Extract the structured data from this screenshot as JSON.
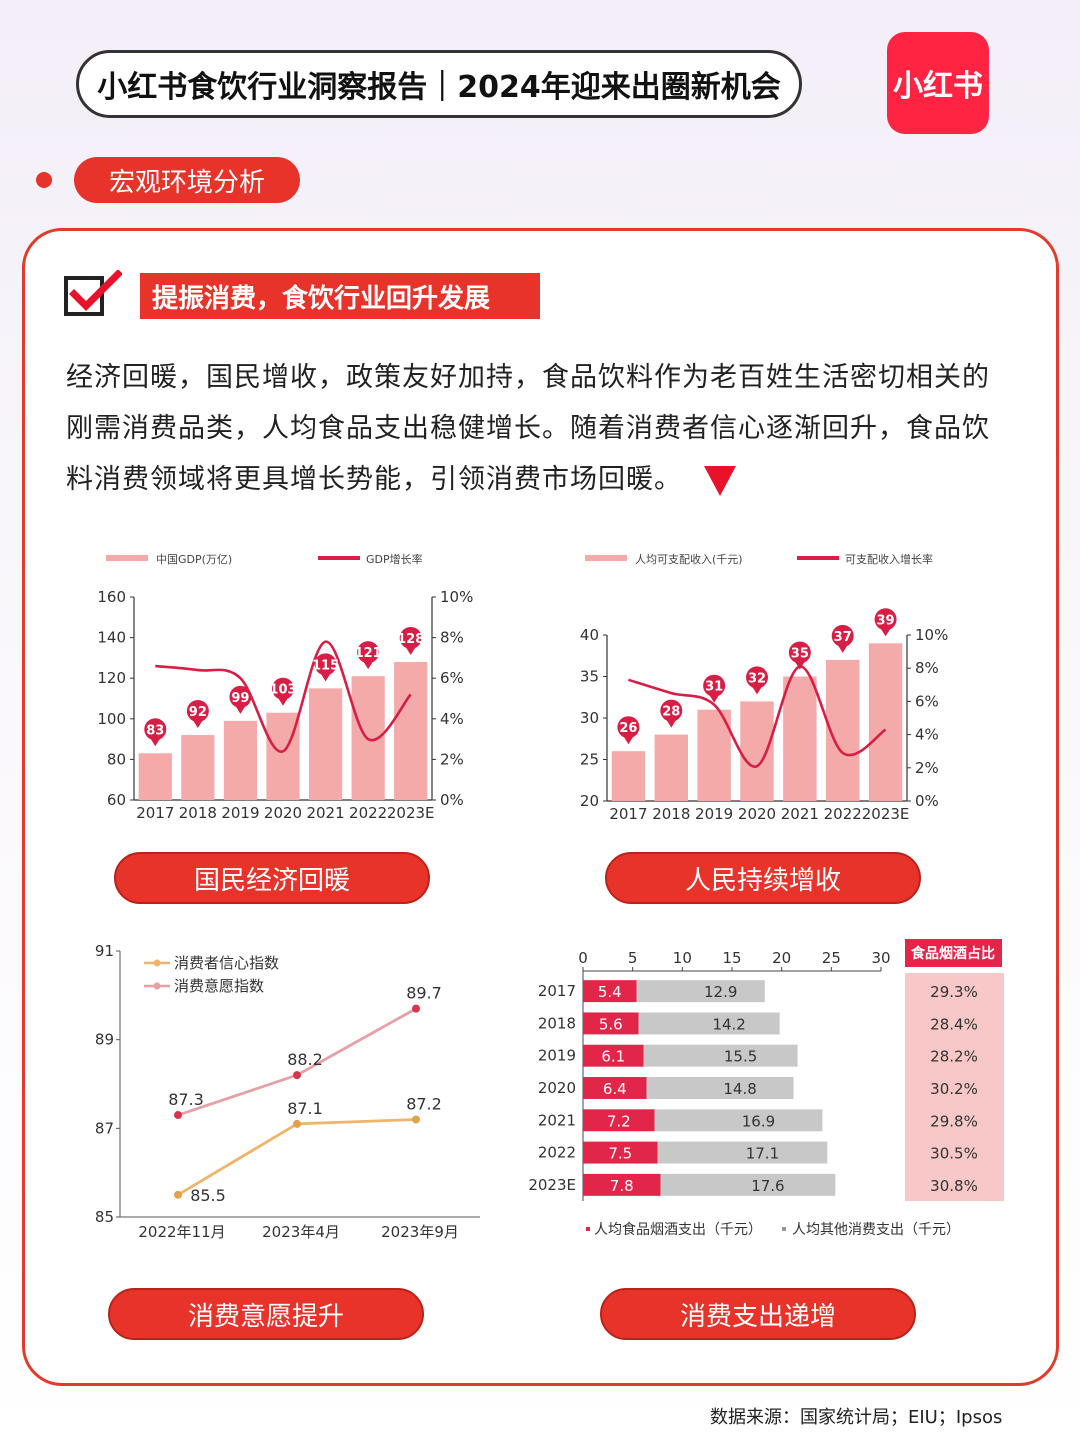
{
  "header": {
    "title": "小红书食饮行业洞察报告｜2024年迎来出圈新机会",
    "logo_text": "小红书",
    "brand_color": "#ff2442"
  },
  "section": {
    "label": "宏观环境分析"
  },
  "headline": "提振消费，食饮行业回升发展",
  "body_text": "经济回暖，国民增收，政策友好加持，食品饮料作为老百姓生活密切相关的刚需消费品类，人均食品支出稳健增长。随着消费者信心逐渐回升，食品饮料消费领域将更具增长势能，引领消费市场回暖。",
  "captions": {
    "gdp": "国民经济回暖",
    "income": "人民持续增收",
    "confidence": "消费意愿提升",
    "spending": "消费支出递增"
  },
  "source": "数据来源：国家统计局；EIU；Ipsos",
  "chart_data": [
    {
      "type": "bar",
      "categories": [
        "2017",
        "2018",
        "2019",
        "2020",
        "2021",
        "2022",
        "2023E"
      ],
      "series": [
        {
          "name": "中国GDP(万亿)",
          "type": "bar",
          "values": [
            83,
            92,
            99,
            103,
            115,
            121,
            128
          ],
          "color": "#f4aaa8"
        },
        {
          "name": "GDP增长率",
          "type": "line",
          "axis": "right",
          "values": [
            6.6,
            6.4,
            6.0,
            2.4,
            7.8,
            3.0,
            5.2
          ],
          "color": "#d81e44"
        }
      ],
      "left_axis": {
        "min": 60,
        "max": 160,
        "ticks": [
          60,
          80,
          100,
          120,
          140,
          160
        ]
      },
      "right_axis": {
        "min": 0,
        "max": 10,
        "ticks": [
          "0%",
          "2%",
          "4%",
          "6%",
          "8%",
          "10%"
        ]
      },
      "legend_position": "top"
    },
    {
      "type": "bar",
      "categories": [
        "2017",
        "2018",
        "2019",
        "2020",
        "2021",
        "2022",
        "2023E"
      ],
      "series": [
        {
          "name": "人均可支配收入(千元)",
          "type": "bar",
          "values": [
            26,
            28,
            31,
            32,
            35,
            37,
            39
          ],
          "color": "#f4aaa8"
        },
        {
          "name": "可支配收入增长率",
          "type": "line",
          "axis": "right",
          "values": [
            7.3,
            6.5,
            5.8,
            2.1,
            8.1,
            2.9,
            4.3
          ],
          "color": "#d81e44"
        }
      ],
      "left_axis": {
        "min": 20,
        "max": 40,
        "ticks": [
          20,
          25,
          30,
          35,
          40
        ]
      },
      "right_axis": {
        "min": 0,
        "max": 10,
        "ticks": [
          "0%",
          "2%",
          "4%",
          "6%",
          "8%",
          "10%"
        ]
      },
      "legend_position": "top"
    },
    {
      "type": "line",
      "x": [
        "2022年11月",
        "2023年4月",
        "2023年9月"
      ],
      "series": [
        {
          "name": "消费者信心指数",
          "values": [
            85.5,
            87.1,
            87.2
          ],
          "color": "#f0b46c"
        },
        {
          "name": "消费意愿指数",
          "values": [
            87.3,
            88.2,
            89.7
          ],
          "color": "#e6a0a6"
        }
      ],
      "y_axis": {
        "min": 85,
        "max": 91,
        "ticks": [
          85,
          87,
          89,
          91
        ]
      },
      "legend_position": "top-left"
    },
    {
      "type": "bar",
      "orientation": "horizontal",
      "stacked": true,
      "categories": [
        "2017",
        "2018",
        "2019",
        "2020",
        "2021",
        "2022",
        "2023E"
      ],
      "series": [
        {
          "name": "人均食品烟酒支出（千元）",
          "values": [
            5.4,
            5.6,
            6.1,
            6.4,
            7.2,
            7.5,
            7.8
          ],
          "color": "#e2264a"
        },
        {
          "name": "人均其他消费支出（千元）",
          "values": [
            12.9,
            14.2,
            15.5,
            14.8,
            16.9,
            17.1,
            17.6
          ],
          "color": "#c8c8c8"
        }
      ],
      "x_axis": {
        "min": 0,
        "max": 30,
        "ticks": [
          0,
          5,
          10,
          15,
          20,
          25,
          30
        ]
      },
      "side_table": {
        "header": "食品烟酒占比",
        "values": [
          "29.3%",
          "28.4%",
          "28.2%",
          "30.2%",
          "29.8%",
          "30.5%",
          "30.8%"
        ]
      },
      "legend_position": "bottom"
    }
  ]
}
